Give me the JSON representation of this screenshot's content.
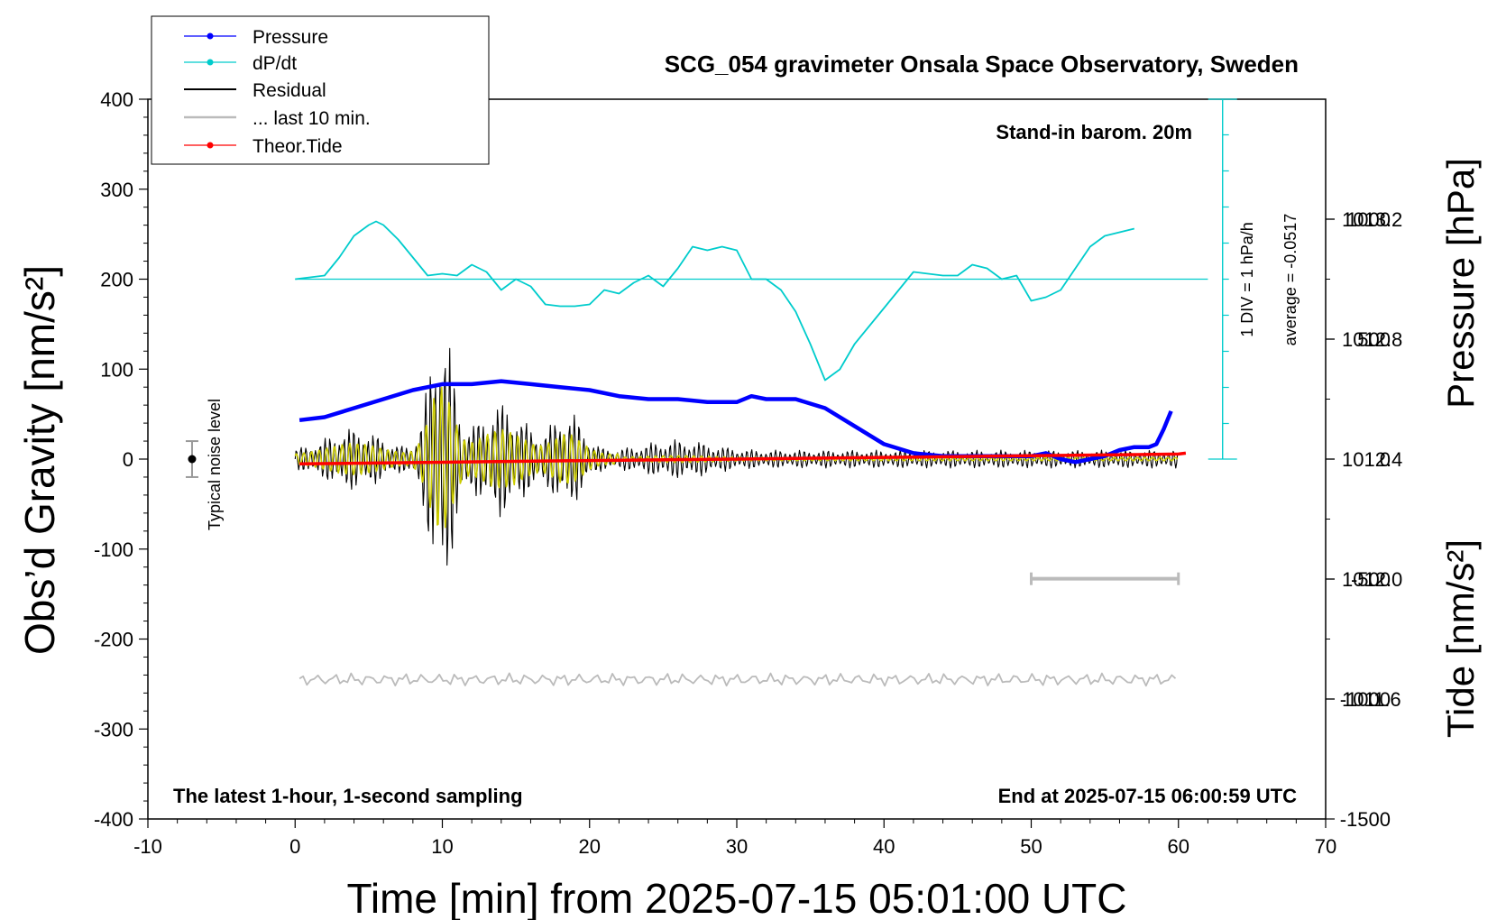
{
  "chart_data": {
    "type": "line",
    "title": "SCG_054 gravimeter Onsala Space Observatory, Sweden",
    "xlabel": "Time [min] from 2025-07-15 05:01:00 UTC",
    "ylabel_left": "Obs’d Gravity [nm/s²]",
    "ylabel_right_top": "Pressure [hPa]",
    "ylabel_right_bottom": "Tide [nm/s²]",
    "xlim": [
      -10,
      70
    ],
    "ylim": [
      -400,
      400
    ],
    "pressure_ylim": [
      1011.2,
      1013.6
    ],
    "tide_ylim": [
      -1500,
      1500
    ],
    "x_ticks": [
      "-10",
      "0",
      "10",
      "20",
      "30",
      "40",
      "50",
      "60",
      "70"
    ],
    "y_ticks": [
      "400",
      "300",
      "200",
      "100",
      "0",
      "-100",
      "-200",
      "-300",
      "-400"
    ],
    "pressure_ticks": [
      "1013.2",
      "1012.8",
      "1012.4",
      "1012.0",
      "1011.6"
    ],
    "tide_ticks": [
      "1000",
      "500",
      "0",
      "-500",
      "-1000",
      "-1500"
    ],
    "legend": [
      {
        "label": "Pressure",
        "color": "#0000ff"
      },
      {
        "label": "dP/dt",
        "color": "#00cccc"
      },
      {
        "label": "Residual",
        "color": "#000000"
      },
      {
        "label": "... last 10 min.",
        "color": "#bbbbbb"
      },
      {
        "label": "Theor.Tide",
        "color": "#ff0000"
      }
    ],
    "annotations": {
      "barometer": "Stand-in barom. 20m",
      "latest": "The latest 1-hour, 1-second sampling",
      "end_time": "End at 2025-07-15 06:00:59 UTC",
      "div_scale": "1 DIV = 1 hPa/h",
      "average": "average = -0.0517",
      "noise": "Typical noise level"
    },
    "series": [
      {
        "name": "Pressure",
        "color": "#0000ff",
        "units": "hPa",
        "x": [
          0.3,
          2,
          4,
          6,
          8,
          10,
          12,
          14,
          16,
          18,
          20,
          22,
          24,
          26,
          28,
          30,
          31,
          32,
          34,
          36,
          38,
          40,
          42,
          44,
          46,
          48,
          50,
          51,
          52,
          53,
          54,
          55,
          56,
          57,
          58,
          58.5,
          59,
          59.5
        ],
        "values": [
          1012.53,
          1012.54,
          1012.57,
          1012.6,
          1012.63,
          1012.65,
          1012.65,
          1012.66,
          1012.65,
          1012.64,
          1012.63,
          1012.61,
          1012.6,
          1012.6,
          1012.59,
          1012.59,
          1012.61,
          1012.6,
          1012.6,
          1012.57,
          1012.51,
          1012.45,
          1012.42,
          1012.41,
          1012.41,
          1012.41,
          1012.41,
          1012.42,
          1012.4,
          1012.39,
          1012.4,
          1012.41,
          1012.43,
          1012.44,
          1012.44,
          1012.45,
          1012.5,
          1012.56
        ]
      },
      {
        "name": "dP/dt",
        "color": "#00cccc",
        "units": "hPa/h",
        "x": [
          0,
          2,
          3,
          4,
          5,
          5.5,
          6,
          7,
          8,
          9,
          10,
          11,
          12,
          13,
          14,
          15,
          16,
          17,
          18,
          19,
          20,
          21,
          22,
          23,
          24,
          25,
          26,
          27,
          28,
          29,
          30,
          31,
          32,
          33,
          34,
          35,
          36,
          37,
          38,
          40,
          42,
          44,
          45,
          46,
          47,
          48,
          49,
          50,
          51,
          52,
          53,
          54,
          55,
          56,
          57
        ],
        "values": [
          0,
          0.1,
          0.6,
          1.2,
          1.5,
          1.6,
          1.5,
          1.1,
          0.6,
          0.1,
          0.15,
          0.1,
          0.4,
          0.2,
          -0.3,
          0.0,
          -0.2,
          -0.7,
          -0.75,
          -0.75,
          -0.7,
          -0.3,
          -0.4,
          -0.1,
          0.1,
          -0.2,
          0.3,
          0.9,
          0.8,
          0.9,
          0.8,
          0.0,
          0.0,
          -0.3,
          -0.9,
          -1.8,
          -2.8,
          -2.5,
          -1.8,
          -0.8,
          0.2,
          0.1,
          0.1,
          0.4,
          0.3,
          0.0,
          0.1,
          -0.6,
          -0.5,
          -0.3,
          0.3,
          0.9,
          1.2,
          1.3,
          1.4
        ]
      },
      {
        "name": "Theor.Tide",
        "color": "#ff0000",
        "units": "nm/s²",
        "x": [
          0.3,
          10,
          20,
          30,
          40,
          50,
          60,
          60.5
        ],
        "values": [
          -20,
          -13,
          -6,
          0,
          7,
          14,
          21,
          25
        ]
      }
    ]
  }
}
